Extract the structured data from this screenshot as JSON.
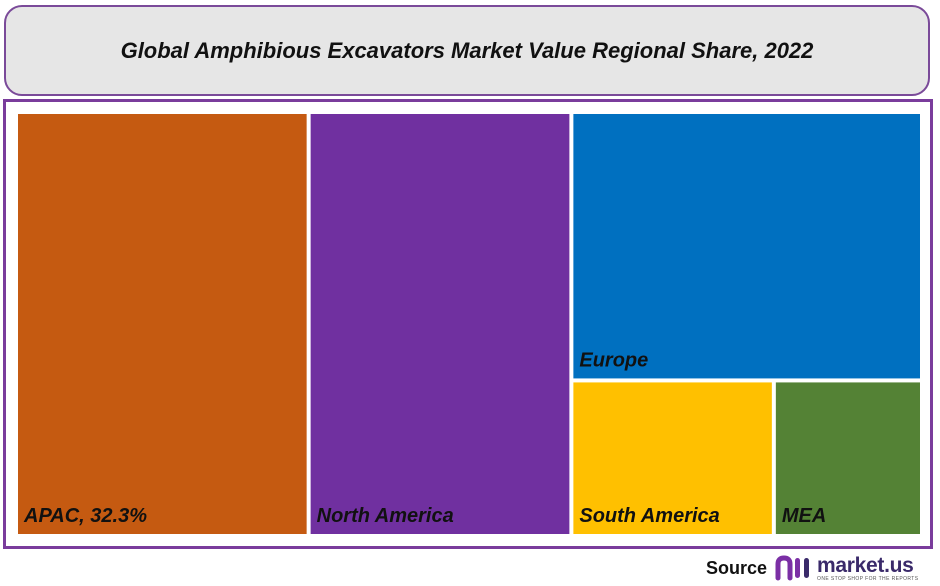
{
  "title": "Global Amphibious Excavators Market Value Regional Share, 2022",
  "chart_data": {
    "type": "treemap",
    "title": "Global Amphibious Excavators Market Value Regional Share, 2022",
    "unit": "%",
    "tiles": [
      {
        "name": "APAC",
        "label": "APAC, 32.3%",
        "value": 32.3,
        "color": "#C55A11"
      },
      {
        "name": "North America",
        "label": "North America",
        "value": 29.0,
        "color": "#7030A0"
      },
      {
        "name": "Europe",
        "label": "Europe",
        "value": 24.5,
        "color": "#0070C0"
      },
      {
        "name": "South America",
        "label": "South America",
        "value": 8.2,
        "color": "#FFC000"
      },
      {
        "name": "MEA",
        "label": "MEA",
        "value": 6.0,
        "color": "#548235"
      }
    ]
  },
  "source": {
    "label": "Source",
    "brand": "market.us",
    "tagline": "ONE STOP SHOP FOR THE REPORTS",
    "logo_colors": [
      "#7b2fa5",
      "#3a2a6a"
    ]
  }
}
